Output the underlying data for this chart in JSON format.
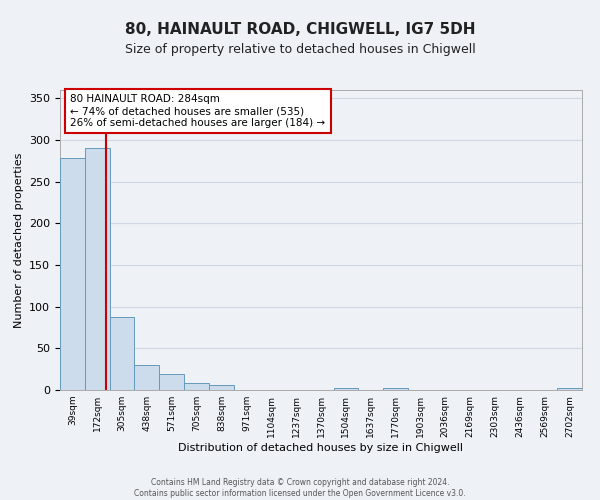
{
  "title": "80, HAINAULT ROAD, CHIGWELL, IG7 5DH",
  "subtitle": "Size of property relative to detached houses in Chigwell",
  "xlabel": "Distribution of detached houses by size in Chigwell",
  "ylabel": "Number of detached properties",
  "bar_labels": [
    "39sqm",
    "172sqm",
    "305sqm",
    "438sqm",
    "571sqm",
    "705sqm",
    "838sqm",
    "971sqm",
    "1104sqm",
    "1237sqm",
    "1370sqm",
    "1504sqm",
    "1637sqm",
    "1770sqm",
    "1903sqm",
    "2036sqm",
    "2169sqm",
    "2303sqm",
    "2436sqm",
    "2569sqm",
    "2702sqm"
  ],
  "bar_heights": [
    278,
    291,
    88,
    30,
    19,
    8,
    6,
    0,
    0,
    0,
    0,
    3,
    0,
    3,
    0,
    0,
    0,
    0,
    0,
    0,
    3
  ],
  "bar_color": "#ccdcec",
  "bar_edge_color": "#6699bb",
  "ylim": [
    0,
    360
  ],
  "yticks": [
    0,
    50,
    100,
    150,
    200,
    250,
    300,
    350
  ],
  "property_line_x": 284,
  "bin_edges": [
    39,
    172,
    305,
    438,
    571,
    705,
    838,
    971,
    1104,
    1237,
    1370,
    1504,
    1637,
    1770,
    1903,
    2036,
    2169,
    2303,
    2436,
    2569,
    2702,
    2835
  ],
  "annotation_line1": "80 HAINAULT ROAD: 284sqm",
  "annotation_line2": "← 74% of detached houses are smaller (535)",
  "annotation_line3": "26% of semi-detached houses are larger (184) →",
  "annotation_box_color": "#ffffff",
  "annotation_box_edge": "#cc0000",
  "footer_text": "Contains HM Land Registry data © Crown copyright and database right 2024.\nContains public sector information licensed under the Open Government Licence v3.0.",
  "red_line_color": "#cc0000",
  "background_color": "#eef2f7",
  "grid_color": "#d0d8e4",
  "title_fontsize": 11,
  "subtitle_fontsize": 9
}
